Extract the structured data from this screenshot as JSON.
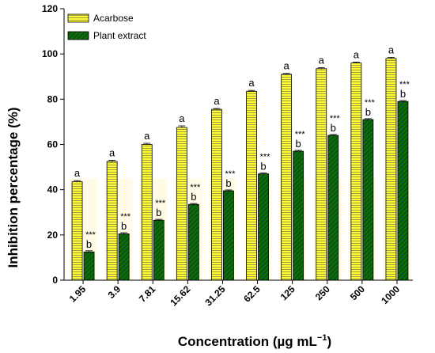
{
  "chart_data": {
    "type": "bar",
    "categories": [
      "1.95",
      "3.9",
      "7.81",
      "15.62",
      "31.25",
      "62.5",
      "125",
      "250",
      "500",
      "1000"
    ],
    "series": [
      {
        "name": "Acarbose",
        "values": [
          43.5,
          52.5,
          60,
          67.5,
          75.5,
          83.5,
          91,
          93.5,
          96,
          98
        ],
        "error": [
          0.5,
          0.5,
          0.5,
          0.7,
          0.4,
          0.4,
          0.4,
          0.4,
          0.4,
          0.5
        ],
        "letters": [
          "a",
          "a",
          "a",
          "a",
          "a",
          "a",
          "a",
          "a",
          "a",
          "a"
        ],
        "color": "#ffff33",
        "hatch": "horizontal"
      },
      {
        "name": "Plant extract",
        "values": [
          12.5,
          20.5,
          26.5,
          33.5,
          39.5,
          47,
          57,
          64,
          71,
          79
        ],
        "error": [
          0.5,
          0.5,
          0.4,
          0.4,
          0.4,
          0.4,
          0.4,
          0.4,
          0.4,
          0.4
        ],
        "letters": [
          "b",
          "b",
          "b",
          "b",
          "b",
          "b",
          "b",
          "b",
          "b",
          "b"
        ],
        "significance": [
          "***",
          "***",
          "***",
          "***",
          "***",
          "***",
          "***",
          "***",
          "***",
          "***"
        ],
        "color": "#0f6b0f",
        "hatch": "diagonal"
      }
    ],
    "xlabel": "Concentration (µg mL",
    "xlabel_sup": "−1",
    "xlabel_end": ")",
    "ylabel": "Inhibition percentage (%)",
    "ylim": [
      0,
      120
    ],
    "yticks": [
      "0",
      "20",
      "40",
      "60",
      "80",
      "100",
      "120"
    ],
    "legend_position": "top-left",
    "grid": false
  }
}
